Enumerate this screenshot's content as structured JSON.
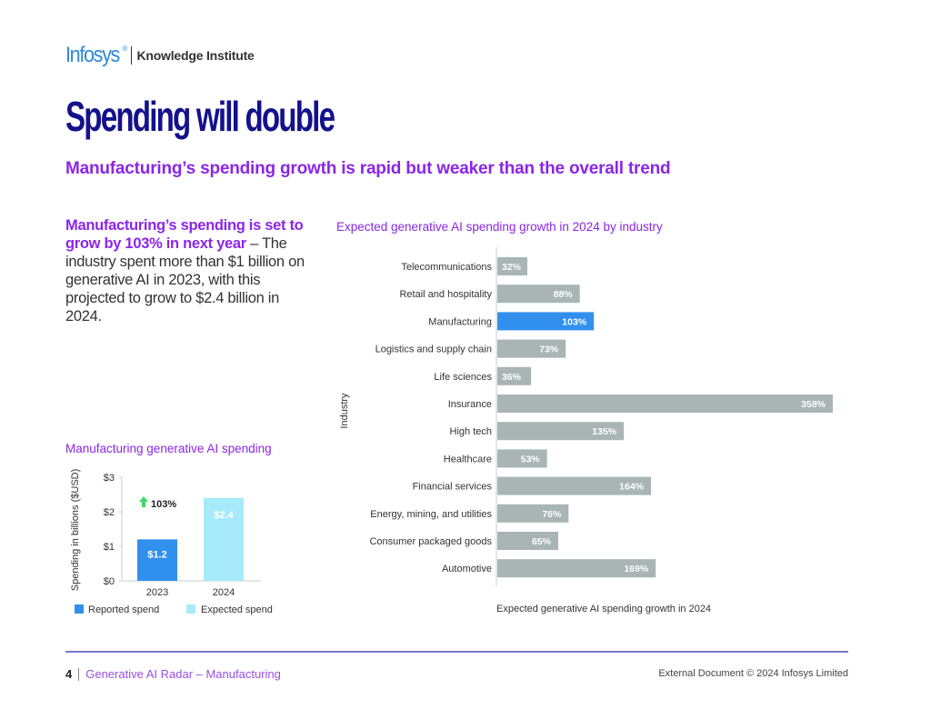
{
  "header": {
    "brand": "Infosys",
    "brand_mark": "®",
    "sub_brand": "Knowledge Institute"
  },
  "page": {
    "title": "Spending will double",
    "subtitle": "Manufacturing’s spending growth is rapid but weaker than the overall trend",
    "intro_highlight": "Manufacturing’s spending is set to grow by 103% in next year",
    "intro_dash": " – ",
    "intro_body": "The industry spent more than $1 billion on generative AI in 2023, with this projected to grow to $2.4 billion in 2024."
  },
  "colors": {
    "highlight_bar": "#3190ee",
    "default_bar": "#a8b5b4",
    "reported": "#3190ee",
    "expected": "#a6eafb",
    "arrow": "#3fd86a",
    "title_navy": "#13118b",
    "accent_purple": "#8b26e8"
  },
  "chart_data": [
    {
      "type": "bar",
      "orientation": "horizontal",
      "title": "Expected generative AI spending growth in 2024 by industry",
      "xlabel": "Expected generative AI spending growth in 2024",
      "ylabel": "Industry",
      "categories": [
        "Telecommunications",
        "Retail and hospitality",
        "Manufacturing",
        "Logistics and supply chain",
        "Life sciences",
        "Insurance",
        "High tech",
        "Healthcare",
        "Financial services",
        "Energy, mining, and utilities",
        "Consumer packaged goods",
        "Automotive"
      ],
      "values": [
        32,
        88,
        103,
        73,
        36,
        358,
        135,
        53,
        164,
        76,
        65,
        169
      ],
      "value_labels": [
        "32%",
        "88%",
        "103%",
        "73%",
        "36%",
        "358%",
        "135%",
        "53%",
        "164%",
        "76%",
        "65%",
        "169%"
      ],
      "highlight": "Manufacturing",
      "unit": "%",
      "xlim": [
        0,
        358
      ],
      "grid": false,
      "legend": "none"
    },
    {
      "type": "bar",
      "orientation": "vertical",
      "title": "Manufacturing generative AI spending",
      "xlabel": "",
      "ylabel": "Spending in billions ($USD)",
      "categories": [
        "2023",
        "2024"
      ],
      "values": [
        1.2,
        2.4
      ],
      "value_labels": [
        "$1.2",
        "$2.4"
      ],
      "series_names": [
        "Reported spend",
        "Expected spend"
      ],
      "yticks": [
        "$0",
        "$1",
        "$2",
        "$3"
      ],
      "ylim": [
        0,
        3
      ],
      "annotation": "103%",
      "grid": false,
      "legend": "bottom"
    }
  ],
  "footer": {
    "page_number": "4",
    "doc_title": "Generative AI Radar – Manufacturing",
    "copyright": "External Document © 2024 Infosys Limited"
  }
}
